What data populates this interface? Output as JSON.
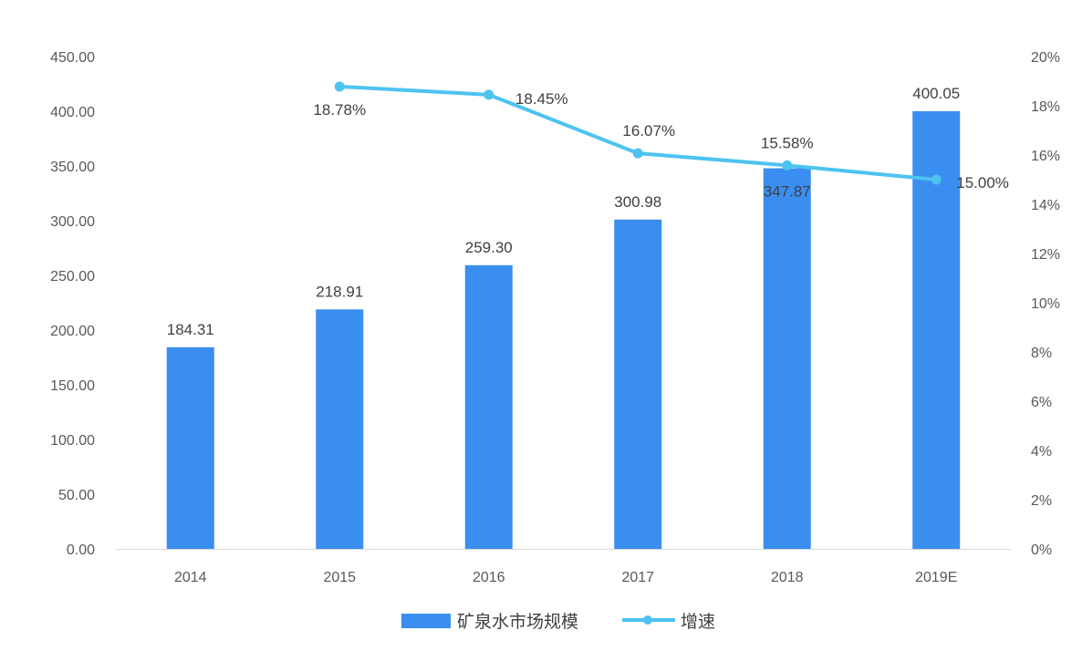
{
  "chart_data": {
    "type": "bar",
    "categories": [
      "2014",
      "2015",
      "2016",
      "2017",
      "2018",
      "2019E"
    ],
    "series": [
      {
        "name": "矿泉水市场规模",
        "type": "bar",
        "axis": "left",
        "values": [
          184.31,
          218.91,
          259.3,
          300.98,
          347.87,
          400.05
        ],
        "labels": [
          "184.31",
          "218.91",
          "259.30",
          "300.98",
          "347.87",
          "400.05"
        ],
        "color": "#3a8ef0"
      },
      {
        "name": "增速",
        "type": "line",
        "axis": "right",
        "values": [
          null,
          18.78,
          18.45,
          16.07,
          15.58,
          15.0
        ],
        "labels": [
          "",
          "18.78%",
          "18.45%",
          "16.07%",
          "15.58%",
          "15.00%"
        ],
        "color": "#4dc3f0"
      }
    ],
    "y_left": {
      "ylim": [
        0,
        450
      ],
      "ticks": [
        "0.00",
        "50.00",
        "100.00",
        "150.00",
        "200.00",
        "250.00",
        "300.00",
        "350.00",
        "400.00",
        "450.00"
      ]
    },
    "y_right": {
      "ylim": [
        0,
        20
      ],
      "ticks": [
        "0%",
        "2%",
        "4%",
        "6%",
        "8%",
        "10%",
        "12%",
        "14%",
        "16%",
        "18%",
        "20%"
      ]
    },
    "grid": false,
    "legend_position": "bottom-center"
  }
}
